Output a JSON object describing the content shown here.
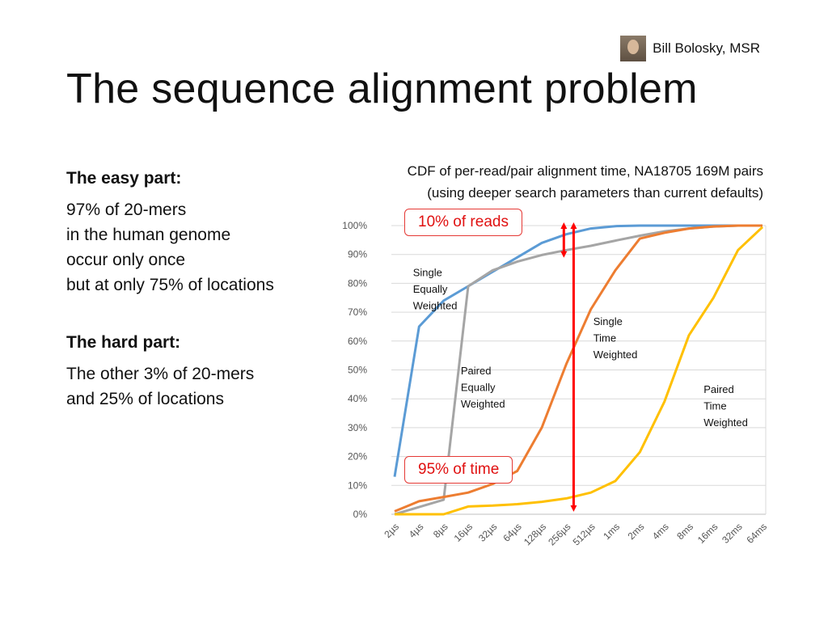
{
  "slide": {
    "author": "Bill Bolosky, MSR",
    "title": "The sequence alignment problem",
    "easy_heading": "The easy part:",
    "easy_lines": [
      "97% of 20-mers",
      "in the human genome",
      "occur only once",
      "but at only 75% of locations"
    ],
    "hard_heading": "The hard part:",
    "hard_lines": [
      "The other 3% of 20-mers",
      "and 25% of locations"
    ],
    "caption_line1": "CDF of per-read/pair alignment time, NA18705 169M pairs",
    "caption_line2": "(using deeper search parameters than current defaults)",
    "callout_reads": "10% of reads",
    "callout_time": "95% of time"
  },
  "chart_data": {
    "type": "line",
    "title": "CDF of per-read/pair alignment time, NA18705 169M pairs (using deeper search parameters than current defaults)",
    "categories": [
      "2µs",
      "4µs",
      "8µs",
      "16µs",
      "32µs",
      "64µs",
      "128µs",
      "256µs",
      "512µs",
      "1ms",
      "2ms",
      "4ms",
      "8ms",
      "16ms",
      "32ms",
      "64ms"
    ],
    "yticks": [
      "0%",
      "10%",
      "20%",
      "30%",
      "40%",
      "50%",
      "60%",
      "70%",
      "80%",
      "90%",
      "100%"
    ],
    "ylim": [
      0,
      100
    ],
    "grid": "horizontal",
    "legend": "inline labels",
    "series": [
      {
        "name": "Single Equally Weighted",
        "color": "#5b9bd5",
        "x": [
          2,
          4,
          8,
          16,
          32,
          64,
          128,
          256,
          512,
          1024,
          2048,
          4096,
          8192,
          16384,
          32768,
          65536
        ],
        "values": [
          13,
          65,
          74,
          79,
          84,
          89,
          94,
          97,
          99,
          99.8,
          100,
          100,
          100,
          100,
          100,
          100
        ]
      },
      {
        "name": "Paired Equally Weighted",
        "color": "#a5a5a5",
        "x": [
          2,
          4,
          8,
          16,
          32,
          64,
          128,
          256,
          512,
          1024,
          2048,
          4096,
          8192,
          16384,
          32768,
          65536
        ],
        "values": [
          0,
          2.5,
          5,
          79,
          84.5,
          87.5,
          89.8,
          91.5,
          93,
          94.8,
          96.5,
          98,
          99,
          99.7,
          100,
          100
        ]
      },
      {
        "name": "Single Time Weighted",
        "color": "#ed7d31",
        "x": [
          2,
          4,
          8,
          16,
          32,
          64,
          128,
          256,
          512,
          1024,
          2048,
          4096,
          8192,
          16384,
          32768,
          65536
        ],
        "values": [
          1,
          4.5,
          6,
          7.5,
          10.5,
          15,
          30,
          52,
          71,
          84.5,
          95.5,
          97.5,
          99,
          99.7,
          100,
          100
        ]
      },
      {
        "name": "Paired Time Weighted",
        "color": "#ffc000",
        "x": [
          2,
          4,
          8,
          16,
          32,
          64,
          128,
          256,
          512,
          1024,
          2048,
          4096,
          8192,
          16384,
          32768,
          65536
        ],
        "values": [
          0,
          0,
          0,
          2.7,
          3,
          3.5,
          4.3,
          5.5,
          7.5,
          11.5,
          21.5,
          39,
          62,
          75,
          91.5,
          99.5
        ]
      }
    ],
    "annotations": [
      {
        "text": [
          "Single",
          "Equally",
          "Weighted"
        ],
        "x_cat": 0.75,
        "y": 82.5
      },
      {
        "text": [
          "Single",
          "Time",
          "Weighted"
        ],
        "x_cat": 8.1,
        "y": 65.5
      },
      {
        "text": [
          "Paired",
          "Equally",
          "Weighted"
        ],
        "x_cat": 2.7,
        "y": 48.5
      },
      {
        "text": [
          "Paired",
          "Time",
          "Weighted"
        ],
        "x_cat": 12.6,
        "y": 42
      }
    ],
    "arrows": [
      {
        "x_cat": 7.3,
        "y_from": 2,
        "y_to": 100,
        "color": "#ff0000"
      },
      {
        "x_cat": 6.9,
        "y_from": 90,
        "y_to": 100,
        "color": "#ff0000"
      }
    ]
  }
}
